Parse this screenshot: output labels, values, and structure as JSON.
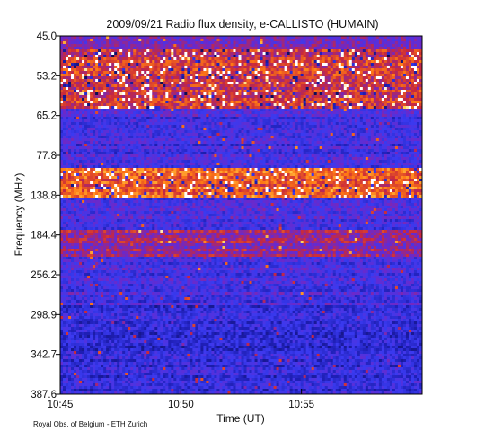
{
  "chart_data": {
    "type": "heatmap",
    "title": "2009/09/21  Radio flux density, e-CALLISTO (HUMAIN)",
    "xlabel": "Time (UT)",
    "ylabel": "Frequency (MHz)",
    "x_ticks": [
      {
        "label": "10:45",
        "minutes": 0
      },
      {
        "label": "10:50",
        "minutes": 5
      },
      {
        "label": "10:55",
        "minutes": 10
      }
    ],
    "x_range_minutes": [
      0,
      15
    ],
    "y_ticks": [
      "45.0",
      "53.2",
      "65.2",
      "77.8",
      "138.8",
      "184.4",
      "256.2",
      "298.9",
      "342.7",
      "387.6"
    ],
    "y_order": "frequency increases downward",
    "colormap": [
      "#0a0a46",
      "#1e1eb4",
      "#3a3af0",
      "#6e28c8",
      "#c8283c",
      "#ff7814",
      "#ffd250",
      "#ffffff"
    ],
    "bands": [
      {
        "from_tick": "45.0",
        "to_tick": "65.2",
        "intensity": "high"
      },
      {
        "from_tick": "138.8",
        "to_tick": "138.8",
        "intensity": "very high"
      },
      {
        "from_tick": "184.4",
        "to_tick": "184.4",
        "intensity": "medium"
      }
    ],
    "credit": "Royal Obs. of Belgium - ETH Zurich"
  }
}
